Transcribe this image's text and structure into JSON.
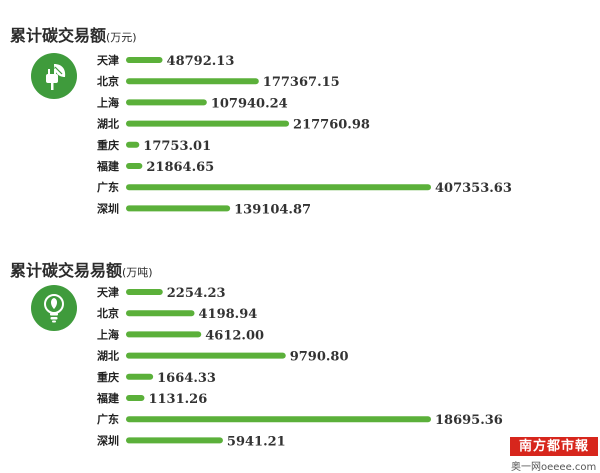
{
  "charts": [
    {
      "title": "累计碳交易额",
      "unit": "(万元)",
      "icon": "plug-leaf-icon"
    },
    {
      "title": "累计碳交易易额",
      "unit": "(万吨)",
      "icon": "lightbulb-leaf-icon"
    }
  ],
  "chart_data": [
    {
      "type": "bar",
      "orientation": "horizontal",
      "title": "累计碳交易额",
      "unit": "(万元)",
      "categories": [
        "天津",
        "北京",
        "上海",
        "湖北",
        "重庆",
        "福建",
        "广东",
        "深圳"
      ],
      "values": [
        48792.13,
        177367.15,
        107940.24,
        217760.98,
        17753.01,
        21864.65,
        407353.63,
        139104.87
      ],
      "value_labels": [
        "48792.13",
        "177367.15",
        "107940.24",
        "217760.98",
        "17753.01",
        "21864.65",
        "407353.63",
        "139104.87"
      ],
      "bar_color": "#5bb03a",
      "grid": false
    },
    {
      "type": "bar",
      "orientation": "horizontal",
      "title": "累计碳交易易额",
      "unit": "(万吨)",
      "categories": [
        "天津",
        "北京",
        "上海",
        "湖北",
        "重庆",
        "福建",
        "广东",
        "深圳"
      ],
      "values": [
        2254.23,
        4198.94,
        4612.0,
        9790.8,
        1664.33,
        1131.26,
        18695.36,
        5941.21
      ],
      "value_labels": [
        "2254.23",
        "4198.94",
        "4612.00",
        "9790.80",
        "1664.33",
        "1131.26",
        "18695.36",
        "5941.21"
      ],
      "bar_color": "#5bb03a",
      "grid": false
    }
  ],
  "watermark": {
    "logo": "南方都市報",
    "site": "奥一网oeeee.com"
  }
}
